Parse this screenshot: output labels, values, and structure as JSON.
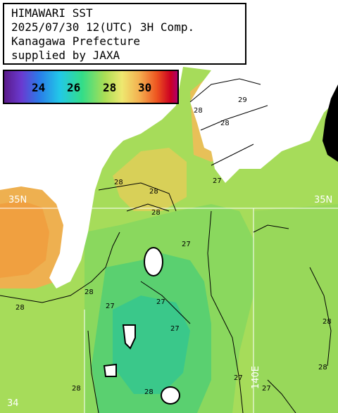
{
  "header": {
    "lines": [
      "HIMAWARI SST",
      "2025/07/30 12(UTC) 3H Comp.",
      "Kanagawa Prefecture",
      "supplied by JAXA"
    ]
  },
  "legend": {
    "ticks": [
      "24",
      "26",
      "28",
      "30"
    ]
  },
  "map_labels": {
    "lat_35": "35N",
    "lat_35_left": "35N",
    "lon_140": "140E",
    "lat_34": "34"
  },
  "contours": [
    "28",
    "29",
    "28",
    "28",
    "28",
    "27",
    "28",
    "28",
    "27",
    "27",
    "27",
    "28",
    "28",
    "27",
    "27",
    "28",
    "28",
    "27",
    "28"
  ],
  "colors": {
    "land": "#ffffff",
    "missing": "#000000",
    "sst_26": "#33dd77",
    "sst_27": "#77dd55",
    "sst_28": "#bbdd55",
    "sst_29": "#f0a040",
    "sst_30": "#ee6620"
  }
}
